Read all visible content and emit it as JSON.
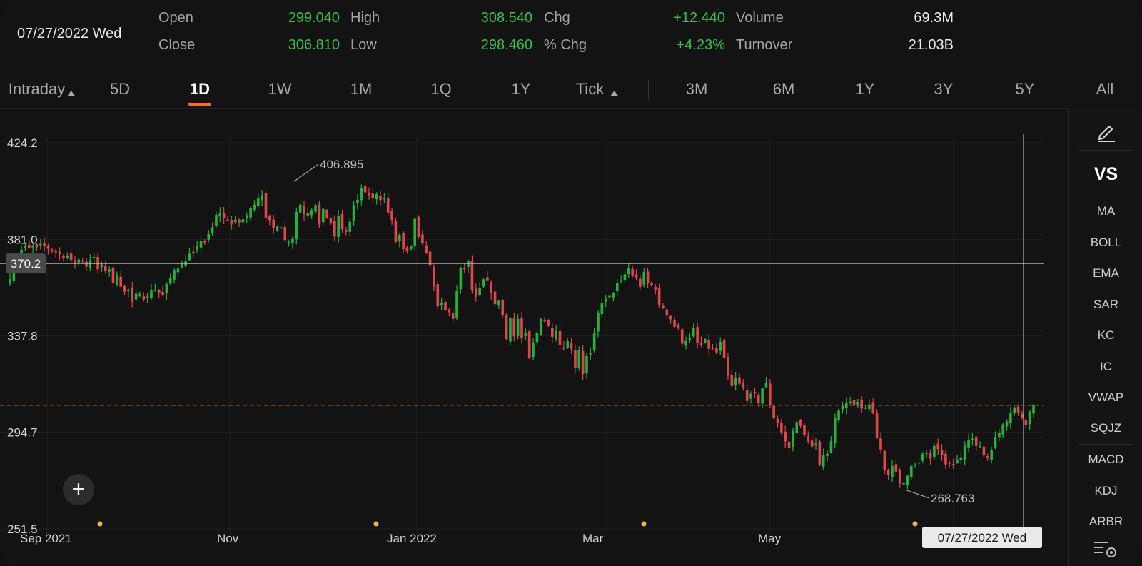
{
  "header": {
    "date": "07/27/2022 Wed",
    "open_label": "Open",
    "open_value": "299.040",
    "close_label": "Close",
    "close_value": "306.810",
    "high_label": "High",
    "high_value": "308.540",
    "low_label": "Low",
    "low_value": "298.460",
    "chg_label": "Chg",
    "chg_value": "+12.440",
    "pchg_label": "% Chg",
    "pchg_value": "+4.23%",
    "volume_label": "Volume",
    "volume_value": "69.3M",
    "turnover_label": "Turnover",
    "turnover_value": "21.03B"
  },
  "tabs": {
    "intraday": "Intraday",
    "d5": "5D",
    "d1": "1D",
    "w1": "1W",
    "m1": "1M",
    "q1": "1Q",
    "y1": "1Y",
    "tick": "Tick",
    "m3": "3M",
    "m6": "6M",
    "y1b": "1Y",
    "y3": "3Y",
    "y5": "5Y",
    "all": "All",
    "active": "1D"
  },
  "chart": {
    "y_ticks": [
      "424.2",
      "381.0",
      "337.8",
      "294.7",
      "251.5"
    ],
    "x_ticks": [
      "Sep 2021",
      "Nov",
      "Jan 2022",
      "Mar",
      "May"
    ],
    "crosshair_value": "370.2",
    "crosshair_date": "07/27/2022 Wed",
    "high_marker": "406.895",
    "low_marker": "268.763",
    "colors": {
      "up": "#21b13c",
      "down": "#e0454b",
      "close_line": "#ff7a1a",
      "bg": "#131313"
    }
  },
  "chart_data": {
    "type": "candlestick",
    "y_ticks": [
      424.2,
      381.0,
      337.8,
      294.7,
      251.5
    ],
    "ylim": [
      251.5,
      424.2
    ],
    "x_ticks": [
      "Sep 2021",
      "Nov",
      "Jan 2022",
      "Mar",
      "May"
    ],
    "annotations": [
      {
        "label": "406.895",
        "type": "high"
      },
      {
        "label": "268.763",
        "type": "low"
      }
    ],
    "crosshair": {
      "value": 370.2,
      "date": "07/27/2022 Wed"
    },
    "close_reference": 306.81,
    "closes": [
      363.2,
      368.5,
      372.1,
      376.3,
      378.2,
      377.0,
      378.1,
      377.5,
      379.0,
      378.2,
      376.8,
      376.0,
      375.2,
      374.4,
      372.8,
      373.8,
      371.7,
      370.6,
      372.0,
      371.4,
      368.8,
      371.7,
      373.1,
      367.6,
      369.8,
      366.9,
      367.6,
      361.6,
      365.2,
      359.8,
      357.6,
      358.5,
      353.2,
      356.7,
      356.6,
      354.1,
      355.4,
      358.4,
      358.5,
      357.2,
      355.9,
      361.1,
      363.6,
      367.3,
      367.9,
      370.0,
      371.3,
      374.6,
      375.4,
      377.9,
      380.4,
      380.0,
      383.4,
      386.4,
      392.0,
      392.6,
      390.5,
      389.7,
      387.7,
      389.8,
      388.6,
      390.0,
      391.8,
      395.0,
      396.4,
      399.5,
      400.8,
      390.7,
      389.6,
      386.0,
      386.7,
      386.3,
      380.7,
      379.9,
      381.2,
      393.2,
      396.5,
      392.3,
      392.7,
      394.1,
      396.3,
      387.6,
      394.6,
      390.5,
      388.5,
      382.3,
      391.6,
      385.5,
      384.4,
      388.9,
      396.3,
      398.7,
      404.0,
      402.0,
      400.9,
      399.6,
      401.2,
      398.6,
      399.5,
      393.0,
      389.6,
      379.9,
      383.0,
      376.6,
      375.7,
      378.1,
      390.2,
      382.2,
      379.2,
      374.8,
      369.5,
      359.9,
      351.0,
      352.7,
      349.3,
      348.4,
      345.4,
      357.8,
      368.3,
      368.0,
      371.5,
      358.1,
      355.3,
      359.4,
      363.1,
      362.7,
      356.8,
      352.0,
      353.5,
      347.3,
      336.3,
      345.7,
      337.6,
      345.4,
      336.7,
      339.2,
      327.9,
      334.9,
      339.1,
      345.4,
      344.4,
      342.3,
      337.4,
      340.2,
      333.6,
      332.0,
      335.4,
      332.0,
      323.7,
      331.6,
      320.7,
      328.8,
      330.3,
      339.3,
      348.3,
      352.4,
      354.4,
      355.7,
      357.1,
      361.3,
      362.7,
      365.4,
      368.0,
      364.9,
      363.9,
      359.7,
      366.4,
      361.3,
      360.6,
      358.3,
      351.5,
      350.4,
      346.9,
      345.2,
      341.9,
      341.6,
      334.3,
      335.5,
      336.8,
      341.5,
      334.6,
      333.8,
      336.5,
      332.0,
      332.3,
      330.4,
      335.2,
      327.9,
      320.0,
      315.4,
      318.9,
      316.4,
      314.8,
      308.7,
      311.9,
      312.2,
      307.7,
      314.3,
      317.0,
      306.8,
      301.0,
      298.9,
      294.7,
      290.6,
      287.8,
      295.3,
      299.3,
      297.6,
      293.6,
      290.7,
      288.3,
      289.6,
      280.3,
      284.6,
      285.1,
      290.6,
      301.1,
      304.4,
      306.4,
      307.7,
      308.4,
      306.8,
      308.3,
      305.3,
      305.8,
      307.1,
      303.4,
      292.2,
      287.0,
      278.0,
      275.7,
      279.6,
      277.1,
      271.8,
      271.9,
      275.3,
      279.6,
      280.3,
      281.2,
      285.1,
      285.6,
      282.9,
      288.6,
      287.2,
      284.6,
      280.3,
      280.7,
      280.5,
      282.6,
      283.5,
      289.0,
      291.3,
      291.8,
      288.6,
      288.5,
      284.3,
      283.2,
      286.9,
      292.7,
      294.5,
      298.3,
      299.5,
      303.2,
      305.7,
      303.4,
      301.3,
      298.0,
      304.0,
      306.8
    ]
  },
  "side_panel": {
    "vs": "VS",
    "items": [
      "MA",
      "BOLL",
      "EMA",
      "SAR",
      "KC",
      "IC",
      "VWAP",
      "SQJZ",
      "MACD",
      "KDJ",
      "ARBR"
    ]
  }
}
